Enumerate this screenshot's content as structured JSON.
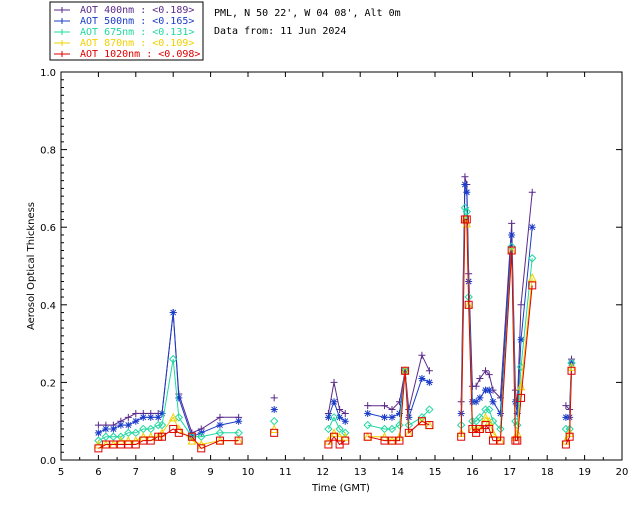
{
  "chart_data": {
    "type": "line",
    "title": "",
    "info": {
      "location": "PML, N 50 22', W 04 08', Alt 0m",
      "date": "Data from: 11 Jun 2024"
    },
    "xlabel": "Time (GMT)",
    "ylabel": "Aerosol Optical Thickness",
    "xlim": [
      5,
      20
    ],
    "ylim": [
      0,
      1
    ],
    "xticks": [
      "5",
      "6",
      "7",
      "8",
      "9",
      "10",
      "11",
      "12",
      "13",
      "14",
      "15",
      "16",
      "17",
      "18",
      "19",
      "20"
    ],
    "yticks": [
      "0.0",
      "0.2",
      "0.4",
      "0.6",
      "0.8",
      "1.0"
    ],
    "x": [
      6.0,
      6.2,
      6.4,
      6.6,
      6.8,
      7.0,
      7.2,
      7.4,
      7.6,
      7.7,
      8.0,
      8.15,
      8.5,
      8.75,
      9.25,
      9.75,
      10.7,
      12.15,
      12.3,
      12.45,
      12.6,
      13.2,
      13.65,
      13.85,
      14.05,
      14.2,
      14.3,
      14.65,
      14.85,
      15.7,
      15.8,
      15.85,
      15.9,
      16.0,
      16.1,
      16.2,
      16.35,
      16.45,
      16.55,
      16.75,
      17.05,
      17.15,
      17.2,
      17.3,
      17.6,
      18.5,
      18.6,
      18.65
    ],
    "series": [
      {
        "name": "AOT  400nm : <0.189>",
        "color": "#5a2a8a",
        "values": [
          0.09,
          0.09,
          0.09,
          0.1,
          0.11,
          0.12,
          0.12,
          0.12,
          0.12,
          0.12,
          0.38,
          0.17,
          0.07,
          0.08,
          0.11,
          0.11,
          0.16,
          0.12,
          0.2,
          0.13,
          0.12,
          0.14,
          0.14,
          0.13,
          0.15,
          0.23,
          0.13,
          0.27,
          0.23,
          0.15,
          0.73,
          0.71,
          0.48,
          0.19,
          0.19,
          0.21,
          0.23,
          0.22,
          0.18,
          0.16,
          0.61,
          0.18,
          0.14,
          0.4,
          0.69,
          0.14,
          0.13,
          0.26
        ]
      },
      {
        "name": "AOT  500nm : <0.165>",
        "color": "#1a3cc8",
        "values": [
          0.07,
          0.08,
          0.08,
          0.09,
          0.09,
          0.1,
          0.11,
          0.11,
          0.11,
          0.12,
          0.38,
          0.16,
          0.06,
          0.07,
          0.09,
          0.1,
          0.13,
          0.11,
          0.15,
          0.11,
          0.1,
          0.12,
          0.11,
          0.11,
          0.12,
          0.23,
          0.11,
          0.21,
          0.2,
          0.12,
          0.71,
          0.69,
          0.46,
          0.15,
          0.15,
          0.16,
          0.18,
          0.18,
          0.15,
          0.12,
          0.58,
          0.15,
          0.12,
          0.31,
          0.6,
          0.11,
          0.11,
          0.25
        ]
      },
      {
        "name": "AOT  675nm : <0.131>",
        "color": "#20d8a0",
        "values": [
          0.05,
          0.06,
          0.06,
          0.06,
          0.07,
          0.07,
          0.08,
          0.08,
          0.09,
          0.09,
          0.26,
          0.11,
          0.06,
          0.06,
          0.07,
          0.07,
          0.1,
          0.08,
          0.11,
          0.08,
          0.07,
          0.09,
          0.08,
          0.08,
          0.09,
          0.23,
          0.09,
          0.11,
          0.13,
          0.09,
          0.65,
          0.64,
          0.42,
          0.1,
          0.1,
          0.11,
          0.13,
          0.13,
          0.1,
          0.08,
          0.55,
          0.1,
          0.09,
          0.24,
          0.52,
          0.08,
          0.08,
          0.25
        ]
      },
      {
        "name": "AOT  870nm : <0.109>",
        "color": "#f0d000",
        "values": [
          0.04,
          0.04,
          0.04,
          0.05,
          0.05,
          0.05,
          0.06,
          0.06,
          0.06,
          0.07,
          0.11,
          0.08,
          0.05,
          0.04,
          0.05,
          0.05,
          0.08,
          0.05,
          0.07,
          0.06,
          0.06,
          0.06,
          0.06,
          0.05,
          0.06,
          0.23,
          0.07,
          0.1,
          0.09,
          0.07,
          0.62,
          0.61,
          0.4,
          0.08,
          0.08,
          0.08,
          0.11,
          0.1,
          0.07,
          0.05,
          0.54,
          0.06,
          0.07,
          0.19,
          0.47,
          0.05,
          0.07,
          0.24
        ]
      },
      {
        "name": "AOT 1020nm : <0.098>",
        "color": "#e00000",
        "values": [
          0.03,
          0.04,
          0.04,
          0.04,
          0.04,
          0.04,
          0.05,
          0.05,
          0.06,
          0.06,
          0.08,
          0.07,
          0.06,
          0.03,
          0.05,
          0.05,
          0.07,
          0.04,
          0.06,
          0.04,
          0.05,
          0.06,
          0.05,
          0.05,
          0.05,
          0.23,
          0.07,
          0.1,
          0.09,
          0.06,
          0.62,
          0.62,
          0.4,
          0.08,
          0.07,
          0.08,
          0.09,
          0.08,
          0.05,
          0.05,
          0.54,
          0.05,
          0.05,
          0.16,
          0.45,
          0.04,
          0.06,
          0.23
        ]
      }
    ]
  }
}
